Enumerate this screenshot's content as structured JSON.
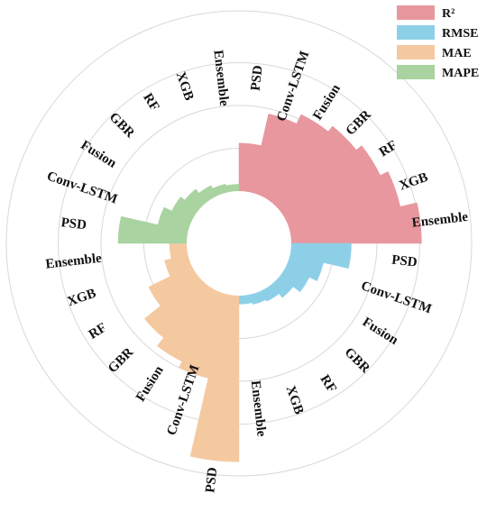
{
  "chart_data": {
    "type": "radial-bar",
    "title": "",
    "grid": true,
    "legend_position": "top-right",
    "radial_max": 1.0,
    "metrics": [
      {
        "name": "R²",
        "color": "#E8979F",
        "label_color": "#111111",
        "categories": [
          "PSD",
          "Conv-LSTM",
          "Fusion",
          "GBR",
          "RF",
          "XGB",
          "Ensemble"
        ],
        "values": [
          0.28,
          0.47,
          0.53,
          0.57,
          0.61,
          0.66,
          0.76
        ]
      },
      {
        "name": "RMSE",
        "color": "#8ECFE8",
        "categories": [
          "PSD",
          "Conv-LSTM",
          "Fusion",
          "GBR",
          "RF",
          "XGB",
          "Ensemble"
        ],
        "values": [
          0.35,
          0.2,
          0.15,
          0.1,
          0.07,
          0.06,
          0.05
        ]
      },
      {
        "name": "MAE",
        "color": "#F5C9A0",
        "categories": [
          "PSD",
          "Conv-LSTM",
          "Fusion",
          "GBR",
          "RF",
          "XGB",
          "Ensemble"
        ],
        "values": [
          0.97,
          0.5,
          0.46,
          0.4,
          0.28,
          0.14,
          0.1
        ]
      },
      {
        "name": "MAPE",
        "color": "#A9D3A0",
        "categories": [
          "PSD",
          "Conv-LSTM",
          "Fusion",
          "GBR",
          "RF",
          "XGB",
          "Ensemble"
        ],
        "values": [
          0.4,
          0.18,
          0.13,
          0.1,
          0.07,
          0.05,
          0.04
        ]
      }
    ]
  }
}
